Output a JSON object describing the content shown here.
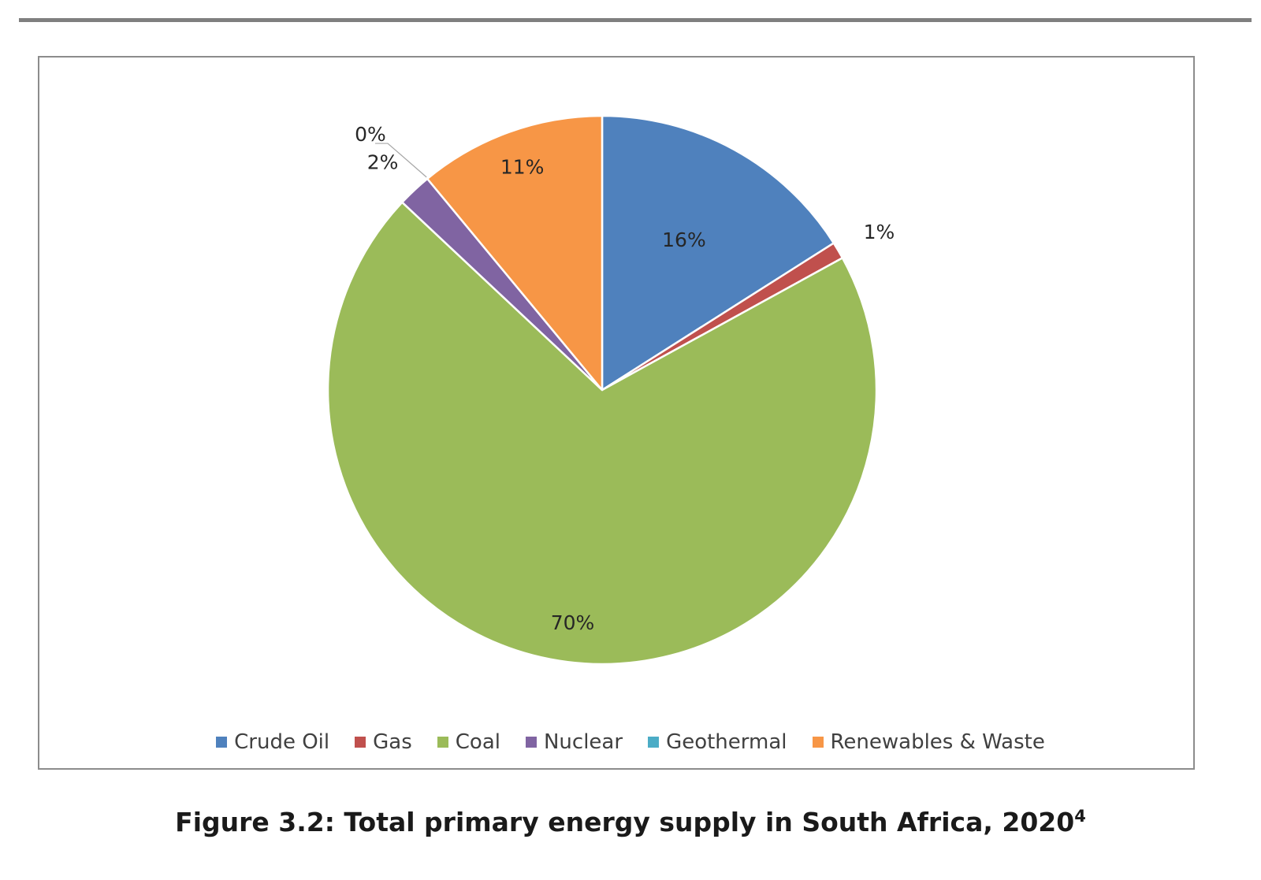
{
  "chart_data": {
    "type": "pie",
    "title": "",
    "categories": [
      "Crude Oil",
      "Gas",
      "Coal",
      "Nuclear",
      "Geothermal",
      "Renewables & Waste"
    ],
    "values": [
      16,
      1,
      70,
      2,
      0,
      11
    ],
    "data_labels": [
      "16%",
      "1%",
      "70%",
      "2%",
      "0%",
      "11%"
    ],
    "colors": [
      "#4f81bd",
      "#c0504d",
      "#9bbb59",
      "#8064a2",
      "#4bacc6",
      "#f79646"
    ],
    "start_angle_deg": 0,
    "direction": "clockwise",
    "legend_position": "bottom"
  },
  "caption": {
    "text": "Figure 3.2: Total primary energy supply in South Africa, 2020",
    "footnote_ref": "4"
  }
}
